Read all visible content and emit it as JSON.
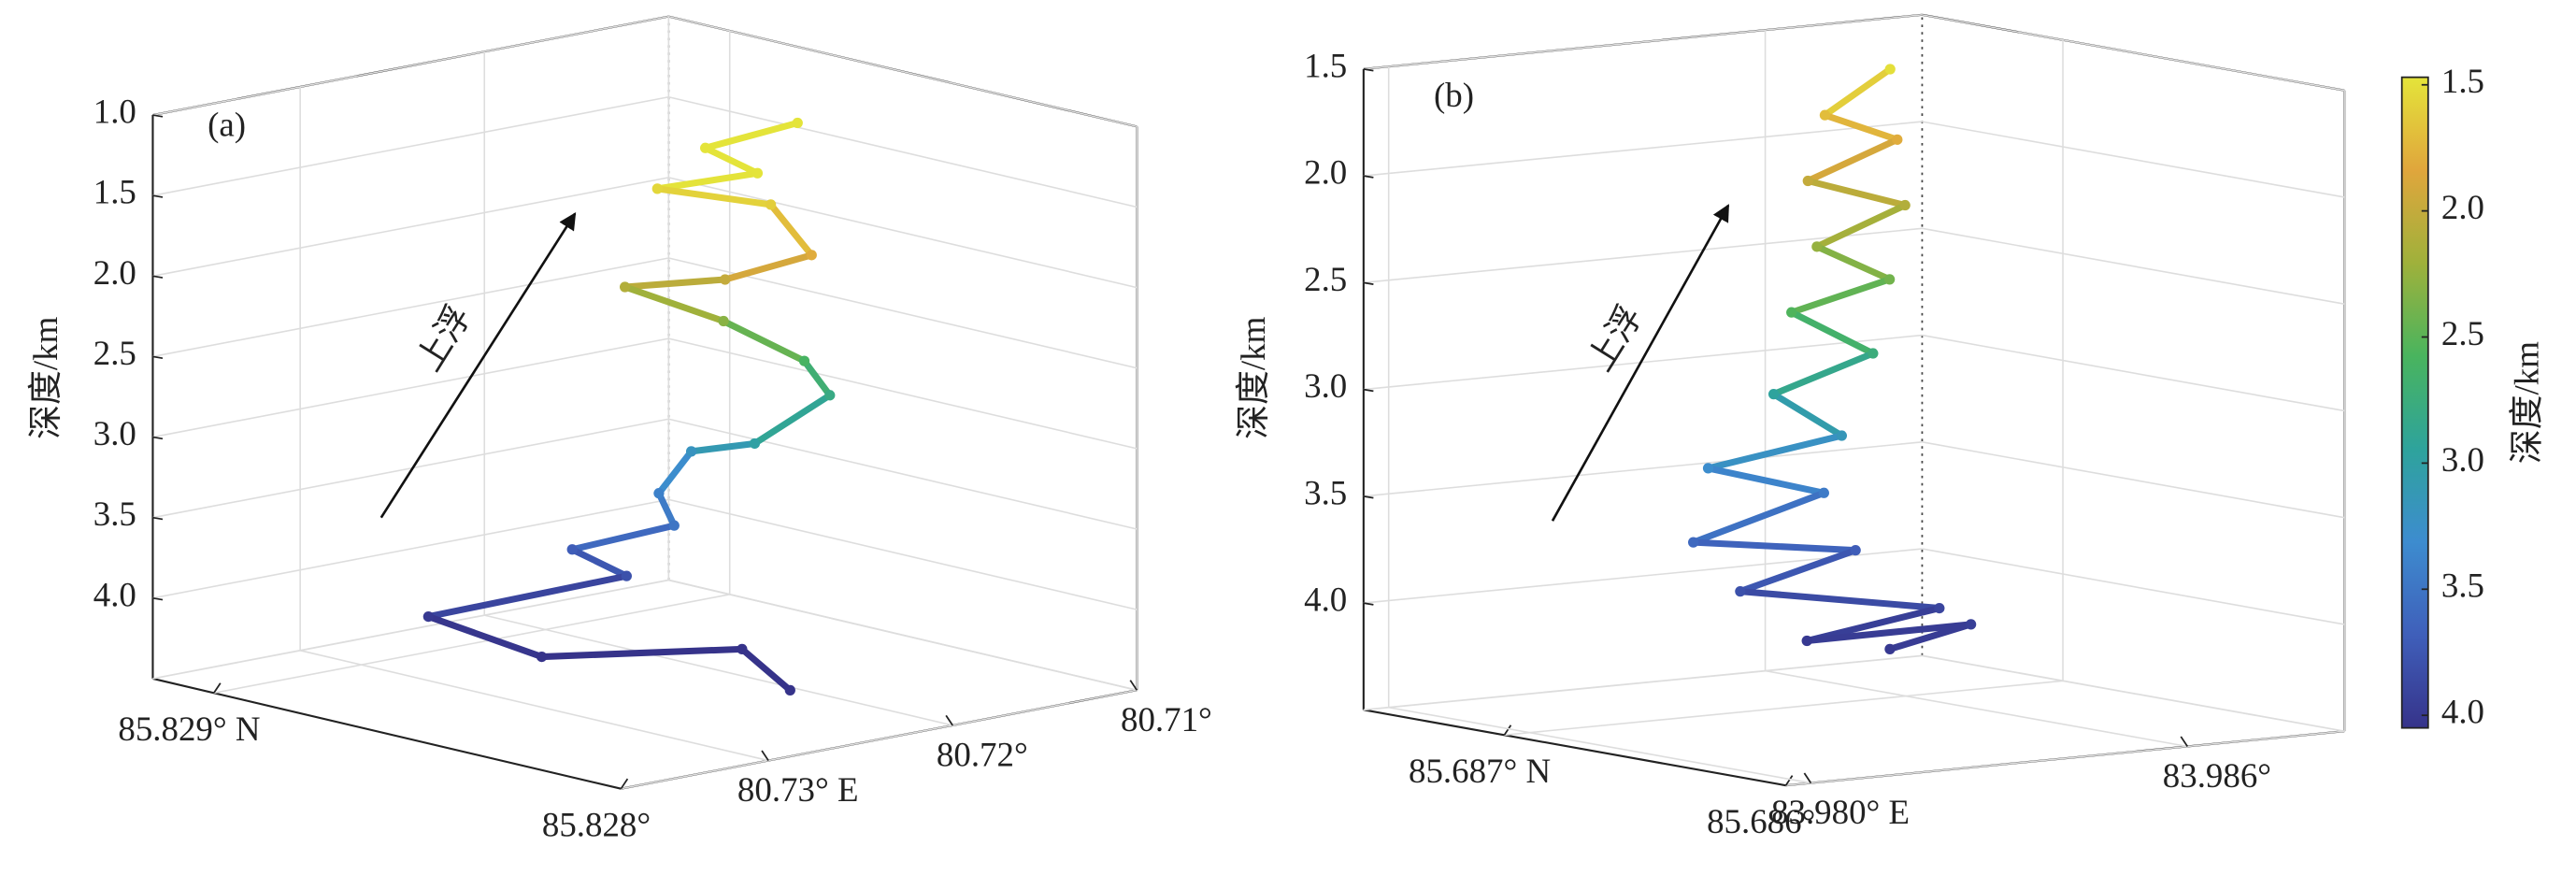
{
  "chart_data": [
    {
      "type": "scatter3d",
      "label": "(a)",
      "zlabel": "深度/km",
      "annotation": "上浮",
      "xlim": [
        80.738,
        80.71
      ],
      "ylim": [
        85.828,
        85.82915
      ],
      "zlim": [
        1.0,
        4.5
      ],
      "zinvert": true,
      "xticks": [
        {
          "value": 80.73,
          "label": "80.73° E"
        },
        {
          "value": 80.72,
          "label": "80.72°"
        },
        {
          "value": 80.71,
          "label": "80.71°"
        }
      ],
      "yticks": [
        {
          "value": 85.829,
          "label": "85.829° N"
        },
        {
          "value": 85.828,
          "label": "85.828°"
        }
      ],
      "zticks": [
        {
          "value": 1,
          "label": "1.0"
        },
        1.5,
        {
          "value": 2,
          "label": "2.0"
        },
        2.5,
        {
          "value": 3,
          "label": "3.0"
        },
        3.5,
        {
          "value": 4,
          "label": "4.0"
        }
      ],
      "grid": true,
      "series": [
        {
          "x": [
            80.7156,
            80.7195,
            80.7191,
            80.721,
            80.7186,
            80.7197,
            80.7213,
            80.7232,
            80.7205,
            80.717,
            80.7165,
            80.7208,
            80.7196,
            80.7218,
            80.7234,
            80.7254,
            80.7251,
            80.7321,
            80.7328,
            80.7248,
            80.7286
          ],
          "y": [
            85.82858,
            85.82863,
            85.82852,
            85.82868,
            85.82851,
            85.82836,
            85.8285,
            85.82866,
            85.82854,
            85.8285,
            85.82846,
            85.82845,
            85.82866,
            85.82864,
            85.82853,
            85.82869,
            85.82857,
            85.82874,
            85.82843,
            85.8283,
            85.82801
          ],
          "z": [
            1.2,
            1.3,
            1.4,
            1.55,
            1.6,
            1.8,
            2.0,
            2.1,
            2.3,
            2.6,
            2.8,
            3.0,
            3.2,
            3.4,
            3.5,
            3.7,
            3.8,
            4.0,
            4.05,
            4.1,
            4.1
          ]
        }
      ]
    },
    {
      "type": "scatter3d",
      "label": "(b)",
      "zlabel": "深度/km",
      "annotation": "上浮",
      "xlim": [
        83.9796,
        83.9885
      ],
      "ylim": [
        85.686,
        85.6875
      ],
      "zlim": [
        1.5,
        4.5
      ],
      "zinvert": true,
      "xticks": [
        {
          "value": 83.98,
          "label": "83.980° E"
        },
        {
          "value": 83.986,
          "label": "83.986°"
        }
      ],
      "yticks": [
        {
          "value": 85.687,
          "label": "85.687° N"
        },
        {
          "value": 85.686,
          "label": "85.686°"
        }
      ],
      "zticks": [
        1.5,
        {
          "value": 2,
          "label": "2.0"
        },
        2.5,
        {
          "value": 3,
          "label": "3.0"
        },
        3.5,
        {
          "value": 4,
          "label": "4.0"
        }
      ],
      "grid": true,
      "series": [
        {
          "x": [
            83.98503,
            83.98417,
            83.98474,
            83.9839,
            83.98473,
            83.98328,
            83.98399,
            83.98292,
            83.98386,
            83.98295,
            83.98372,
            83.98231,
            83.98393,
            83.98158,
            83.98403,
            83.9817,
            83.98402,
            83.982,
            83.98403,
            83.98238
          ],
          "y": [
            85.68684,
            85.68688,
            85.68675,
            85.68688,
            85.68672,
            85.68671,
            85.68661,
            85.68672,
            85.68664,
            85.68679,
            85.68672,
            85.68688,
            85.68683,
            85.68677,
            85.68674,
            85.68663,
            85.68644,
            85.68646,
            85.68633,
            85.68625
          ],
          "z": [
            1.5,
            1.7,
            1.8,
            2.0,
            2.1,
            2.25,
            2.4,
            2.55,
            2.75,
            2.95,
            3.15,
            3.3,
            3.45,
            3.6,
            3.7,
            3.8,
            3.9,
            4.0,
            3.95,
            4.0
          ]
        }
      ]
    },
    {
      "type": "colorbar",
      "label": "深度/km",
      "clim": [
        1.47,
        4.05
      ],
      "ticks": [
        1.5,
        {
          "value": 2,
          "label": "2.0"
        },
        2.5,
        {
          "value": 3,
          "label": "3.0"
        },
        3.5,
        {
          "value": 4,
          "label": "4.0"
        }
      ],
      "colormap": [
        "#e4e43a",
        "#e0a63c",
        "#9fb13b",
        "#49b45e",
        "#2ea39c",
        "#3d8ccf",
        "#3f5fba",
        "#36338a"
      ]
    }
  ]
}
